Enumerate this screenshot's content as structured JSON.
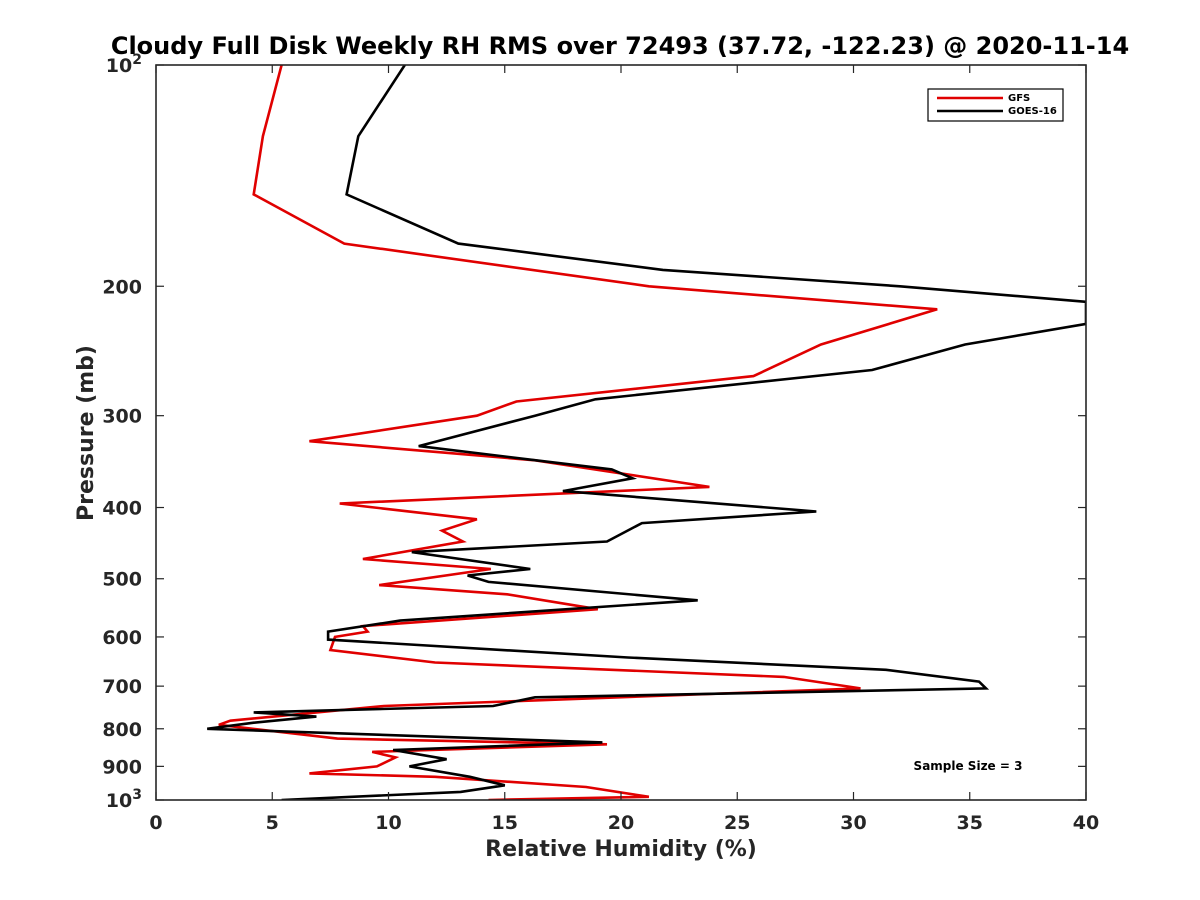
{
  "chart_data": {
    "type": "line",
    "title": "Cloudy Full Disk Weekly RH RMS over 72493 (37.72, -122.23) @ 2020-11-14",
    "xlabel": "Relative Humidity (%)",
    "ylabel": "Pressure (mb)",
    "xlim": [
      0,
      40
    ],
    "ylim": [
      100,
      1000
    ],
    "y_scale": "log",
    "y_reversed": true,
    "grid": false,
    "legend_position": "top-right",
    "x_ticks": [
      0,
      5,
      10,
      15,
      20,
      25,
      30,
      35,
      40
    ],
    "y_ticks": [
      {
        "value": 100,
        "base": "10",
        "exp": "2"
      },
      {
        "value": 200,
        "label": "200"
      },
      {
        "value": 300,
        "label": "300"
      },
      {
        "value": 400,
        "label": "400"
      },
      {
        "value": 500,
        "label": "500"
      },
      {
        "value": 600,
        "label": "600"
      },
      {
        "value": 700,
        "label": "700"
      },
      {
        "value": 800,
        "label": "800"
      },
      {
        "value": 900,
        "label": "900"
      },
      {
        "value": 1000,
        "base": "10",
        "exp": "3"
      }
    ],
    "annotation": "Sample Size = 3",
    "series": [
      {
        "name": "GFS",
        "color": "#e00000",
        "points": [
          [
            5.4,
            100
          ],
          [
            4.6,
            125
          ],
          [
            4.2,
            150
          ],
          [
            8.1,
            175
          ],
          [
            21.2,
            200
          ],
          [
            33.6,
            215
          ],
          [
            28.6,
            240
          ],
          [
            25.7,
            265
          ],
          [
            15.5,
            287
          ],
          [
            13.8,
            300
          ],
          [
            6.6,
            325
          ],
          [
            16.3,
            345
          ],
          [
            23.8,
            375
          ],
          [
            7.9,
            395
          ],
          [
            13.8,
            415
          ],
          [
            12.3,
            430
          ],
          [
            13.2,
            445
          ],
          [
            8.9,
            470
          ],
          [
            14.4,
            485
          ],
          [
            9.6,
            510
          ],
          [
            15.1,
            525
          ],
          [
            19.0,
            550
          ],
          [
            8.9,
            580
          ],
          [
            9.1,
            590
          ],
          [
            7.7,
            600
          ],
          [
            7.5,
            625
          ],
          [
            12.0,
            650
          ],
          [
            27.0,
            680
          ],
          [
            30.3,
            705
          ],
          [
            9.8,
            745
          ],
          [
            3.2,
            780
          ],
          [
            2.7,
            790
          ],
          [
            7.8,
            825
          ],
          [
            19.4,
            840
          ],
          [
            9.3,
            860
          ],
          [
            10.3,
            875
          ],
          [
            9.5,
            900
          ],
          [
            6.6,
            920
          ],
          [
            12.0,
            930
          ],
          [
            18.5,
            960
          ],
          [
            21.2,
            990
          ],
          [
            14.3,
            1000
          ]
        ]
      },
      {
        "name": "GOES-16",
        "color": "#000000",
        "points": [
          [
            10.7,
            100
          ],
          [
            8.7,
            125
          ],
          [
            8.2,
            150
          ],
          [
            13.0,
            175
          ],
          [
            21.8,
            190
          ],
          [
            32.0,
            200
          ],
          [
            40.5,
            210
          ],
          [
            40.5,
            225
          ],
          [
            34.8,
            240
          ],
          [
            30.8,
            260
          ],
          [
            18.9,
            285
          ],
          [
            16.3,
            300
          ],
          [
            11.3,
            330
          ],
          [
            19.6,
            355
          ],
          [
            20.5,
            365
          ],
          [
            17.5,
            380
          ],
          [
            28.4,
            405
          ],
          [
            20.9,
            420
          ],
          [
            19.4,
            445
          ],
          [
            11.0,
            460
          ],
          [
            16.1,
            485
          ],
          [
            13.4,
            495
          ],
          [
            14.3,
            505
          ],
          [
            23.3,
            535
          ],
          [
            10.5,
            570
          ],
          [
            7.4,
            590
          ],
          [
            7.4,
            605
          ],
          [
            20.3,
            640
          ],
          [
            31.4,
            665
          ],
          [
            35.4,
            690
          ],
          [
            35.7,
            705
          ],
          [
            16.3,
            725
          ],
          [
            14.5,
            745
          ],
          [
            4.2,
            760
          ],
          [
            6.9,
            770
          ],
          [
            4.2,
            785
          ],
          [
            2.2,
            800
          ],
          [
            19.2,
            835
          ],
          [
            10.2,
            855
          ],
          [
            12.5,
            880
          ],
          [
            10.9,
            900
          ],
          [
            13.5,
            930
          ],
          [
            15.0,
            955
          ],
          [
            13.1,
            975
          ],
          [
            5.4,
            1000
          ]
        ]
      }
    ]
  }
}
